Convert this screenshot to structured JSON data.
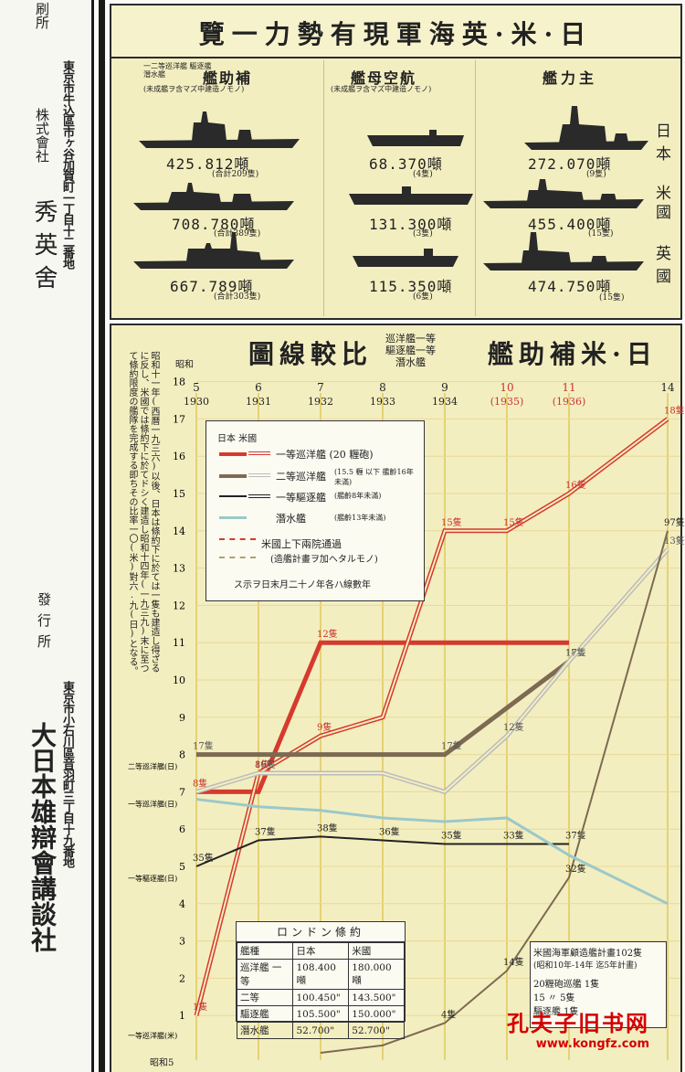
{
  "left_column": {
    "top_frag": "刷所",
    "printer_address": "東京市牛込區市ヶ谷加賀町一丁目十二番地",
    "printer_company": "株式會社",
    "printer_name": "秀英舍",
    "publisher_label": "發行所",
    "publisher_address": "東京市小石川區音羽町三丁目十九番地",
    "publisher_name": "大日本雄辯會講談社"
  },
  "top_panel": {
    "title": "日·米·英海軍現有勢力一覽",
    "col_headers": [
      {
        "label": "補助艦",
        "sub": "一二等巡洋艦 驅逐艦 潛水艦",
        "note": "(未成艦ヲ含マズ中建造ノモノ)"
      },
      {
        "label": "航空母艦",
        "sub": "",
        "note": "(未成艦ヲ含マズ中建造ノモノ)"
      },
      {
        "label": "主力艦",
        "sub": "",
        "note": ""
      }
    ],
    "row_labels": [
      "日本",
      "米國",
      "英國"
    ],
    "rows": [
      [
        {
          "tons": "425.812噸",
          "count": "(合計209隻)"
        },
        {
          "tons": "68.370噸",
          "count": "(4隻)"
        },
        {
          "tons": "272.070噸",
          "count": "(9隻)"
        }
      ],
      [
        {
          "tons": "708.780噸",
          "count": "(合計389隻)"
        },
        {
          "tons": "131.300噸",
          "count": "(3隻)"
        },
        {
          "tons": "455.400噸",
          "count": "(15隻)"
        }
      ],
      [
        {
          "tons": "667.789噸",
          "count": "(合計303隻)"
        },
        {
          "tons": "115.350噸",
          "count": "(6隻)"
        },
        {
          "tons": "474.750噸",
          "count": "(15隻)"
        }
      ]
    ]
  },
  "chart_panel": {
    "title": "日·米補助艦",
    "title_tail": "比較線圖",
    "title_sub": [
      "巡洋艦一等",
      "驅逐艦一等",
      "潛水艦"
    ],
    "side_note": "昭和十一年(西曆一九三六)以後、日本は條約下に於ては一隻も建造し得ざるに反し、米國では條約下に於てドシく建造し昭和十四年(一九三九)末に至つて條約限度の艦隊を完成する即ちその比率一〇(米)對六.九(日)となる。",
    "showa_label": "昭和",
    "bottom_showa_label": "昭和5",
    "colors": {
      "jp_cruiser": "#d63a2e",
      "jp_cruiser2": "#7d6a52",
      "jp_destroyer": "#222222",
      "jp_sub": "#9cc8c8",
      "grid_v": "#e0c85a",
      "grid_h": "#e8d897"
    }
  },
  "legend": {
    "header": "日本 米國",
    "items": [
      {
        "label": "一等巡洋艦 (20 糎砲)"
      },
      {
        "label": "二等巡洋艦",
        "note": "(15.5 糎 以下 艦齡16年未滿)"
      },
      {
        "label": "一等驅逐艦",
        "note": "(艦齡8年未滿)"
      },
      {
        "label": "潛水艦",
        "note": "(艦齡13年未滿)"
      }
    ],
    "us_note1": "米國上下兩院通過",
    "us_note2": "(造艦計畫ヲ加ヘタルモノ)",
    "year_note": "年數線ハ各年ノ十二月末日ヲ示ス"
  },
  "treaty": {
    "title": "ロンドン條約",
    "header": [
      "艦種",
      "日本",
      "米國"
    ],
    "rows": [
      [
        "巡洋艦 一等",
        "108.400噸",
        "180.000噸"
      ],
      [
        "二等",
        "100.450\"",
        "143.500\""
      ],
      [
        "驅逐艦",
        "105.500\"",
        "150.000\""
      ],
      [
        "潛水艦",
        "52.700\"",
        "52.700\""
      ]
    ]
  },
  "us_plan": {
    "title": "米國海軍顧造艦計畫102隻",
    "sub": "(昭和10年-14年 迄5年計畫)",
    "lines": [
      "20糎砲巡艦 1隻",
      "15 〃 5隻",
      "驅逐艦 1隻"
    ]
  },
  "watermark": {
    "cn": "孔夫子旧书网",
    "url": "www.kongfz.com"
  },
  "chart_data": {
    "type": "line",
    "x": [
      "5",
      "6",
      "7",
      "8",
      "9",
      "10",
      "11",
      "14"
    ],
    "x_years": [
      "1930",
      "1931",
      "1932",
      "1933",
      "1934",
      "(1935)",
      "(1936)"
    ],
    "ylim": [
      0,
      18
    ],
    "y_ticks_left": [
      "1",
      "2",
      "3",
      "4",
      "5",
      "6",
      "7",
      "8",
      "9",
      "10",
      "11",
      "12",
      "13",
      "14",
      "15",
      "16",
      "17",
      "18"
    ],
    "side_labels": [
      "二等巡洋艦(日)",
      "一等巡洋艦(日)",
      "一等驅逐艦(日)",
      "一等巡洋艦(米)"
    ],
    "series": [
      {
        "name": "一等巡洋艦(日)",
        "points": [
          [
            5,
            7
          ],
          [
            6,
            7
          ],
          [
            7,
            11
          ],
          [
            8,
            11
          ],
          [
            9,
            11
          ],
          [
            10,
            11
          ],
          [
            11,
            11
          ]
        ],
        "labels": [
          "8隻",
          "",
          "12隻",
          "",
          "",
          "",
          ""
        ]
      },
      {
        "name": "一等巡洋艦(米)",
        "points": [
          [
            5,
            1
          ],
          [
            6,
            7.5
          ],
          [
            7,
            8.5
          ],
          [
            8,
            9
          ],
          [
            9,
            14
          ],
          [
            10,
            14
          ],
          [
            11,
            15
          ],
          [
            14,
            17
          ]
        ],
        "labels": [
          "1隻",
          "8隻",
          "9隻",
          "",
          "15隻",
          "15隻",
          "16隻",
          "18隻"
        ]
      },
      {
        "name": "二等巡洋艦(日)",
        "points": [
          [
            5,
            8
          ],
          [
            6,
            8
          ],
          [
            7,
            8
          ],
          [
            8,
            8
          ],
          [
            9,
            8
          ],
          [
            11,
            10.5
          ]
        ],
        "labels": [
          "17隻",
          "",
          "",
          "",
          "17隻",
          "18隻"
        ]
      },
      {
        "name": "二等巡洋艦(米)",
        "points": [
          [
            5,
            7
          ],
          [
            6,
            7.5
          ],
          [
            7,
            7.5
          ],
          [
            8,
            7.5
          ],
          [
            9,
            7
          ],
          [
            10,
            8.5
          ],
          [
            11,
            10.5
          ],
          [
            14,
            13.5
          ]
        ],
        "labels": [
          "",
          "16隻",
          "",
          "",
          "",
          "12隻",
          "17隻",
          "13隻"
        ]
      },
      {
        "name": "一等驅逐艦(日)",
        "points": [
          [
            5,
            5
          ],
          [
            6,
            5.7
          ],
          [
            7,
            5.8
          ],
          [
            8,
            5.7
          ],
          [
            9,
            5.6
          ],
          [
            10,
            5.6
          ],
          [
            11,
            5.6
          ]
        ],
        "labels": [
          "35隻",
          "37隻",
          "38隻",
          "36隻",
          "35隻",
          "33隻",
          "37隻"
        ]
      },
      {
        "name": "一等驅逐艦(米)",
        "points": [
          [
            7,
            0
          ],
          [
            8,
            0.2
          ],
          [
            9,
            0.8
          ],
          [
            10,
            2.2
          ],
          [
            11,
            4.7
          ],
          [
            14,
            14
          ]
        ],
        "labels": [
          "",
          "",
          "4隻",
          "14隻",
          "32隻",
          "97隻"
        ]
      },
      {
        "name": "潛水艦(日)",
        "points": [
          [
            5,
            6.8
          ],
          [
            6,
            6.6
          ],
          [
            7,
            6.5
          ],
          [
            8,
            6.3
          ],
          [
            9,
            6.2
          ],
          [
            10,
            6.3
          ],
          [
            11,
            5.3
          ],
          [
            14,
            4
          ]
        ],
        "labels": [
          "",
          "",
          "",
          "",
          "",
          "",
          "",
          ""
        ]
      }
    ]
  }
}
